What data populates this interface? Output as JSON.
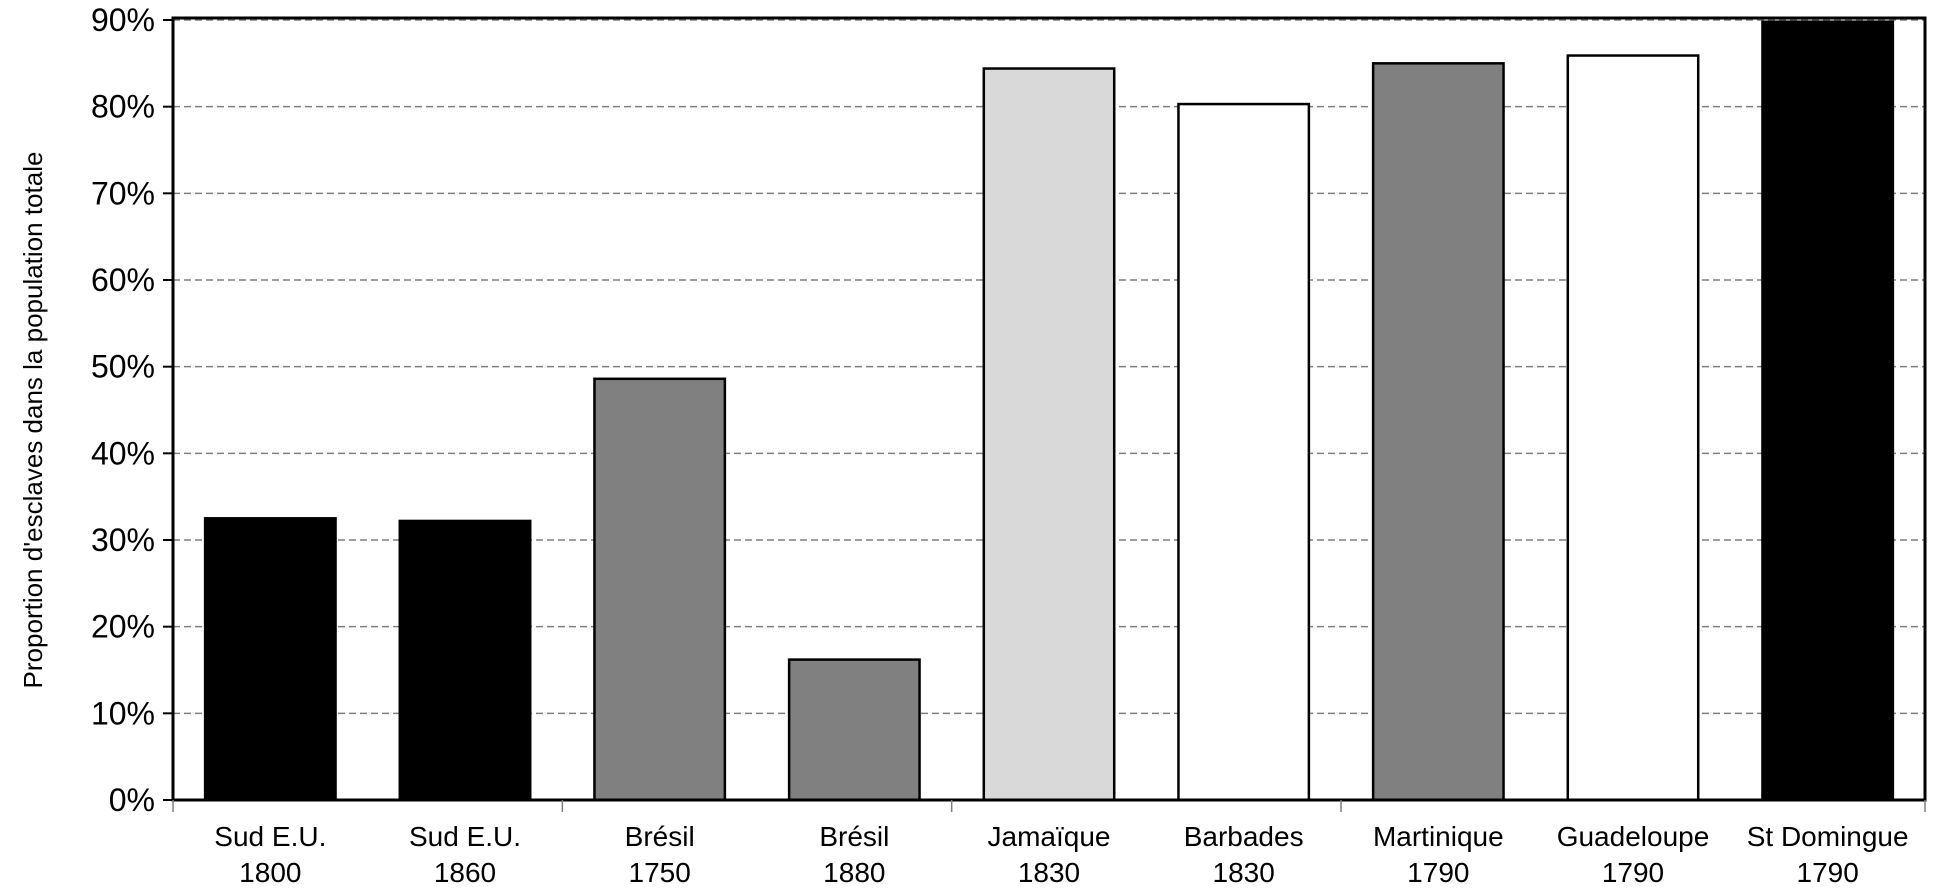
{
  "chart_data": {
    "type": "bar",
    "title": "",
    "ylabel": "Proportion d'esclaves dans la population totale",
    "xlabel": "",
    "ylim": [
      0,
      90
    ],
    "ytick_labels": [
      "0%",
      "10%",
      "20%",
      "30%",
      "40%",
      "50%",
      "60%",
      "70%",
      "80%",
      "90%"
    ],
    "grid": true,
    "categories": [
      [
        "Sud E.U.",
        "1800"
      ],
      [
        "Sud E.U.",
        "1860"
      ],
      [
        "Brésil",
        "1750"
      ],
      [
        "Brésil",
        "1880"
      ],
      [
        "Jamaïque",
        "1830"
      ],
      [
        "Barbades",
        "1830"
      ],
      [
        "Martinique",
        "1790"
      ],
      [
        "Guadeloupe",
        "1790"
      ],
      [
        "St Domingue",
        "1790"
      ]
    ],
    "values": [
      32.5,
      32.2,
      48.6,
      16.2,
      84.4,
      80.3,
      85.0,
      85.9,
      89.8
    ],
    "colors": [
      "#000000",
      "#000000",
      "#808080",
      "#808080",
      "#d9d9d9",
      "#ffffff",
      "#808080",
      "#ffffff",
      "#000000"
    ]
  }
}
